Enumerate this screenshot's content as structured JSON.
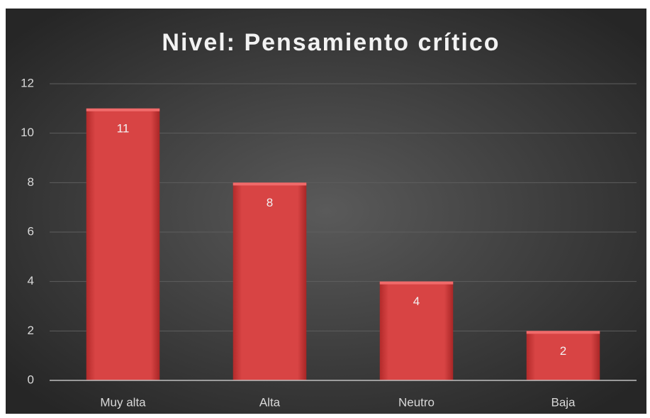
{
  "chart_data": {
    "type": "bar",
    "title": "Nivel: Pensamiento crítico",
    "categories": [
      "Muy alta",
      "Alta",
      "Neutro",
      "Baja"
    ],
    "values": [
      11,
      8,
      4,
      2
    ],
    "color": "#d63c3c",
    "ylim": [
      0,
      12
    ],
    "yticks": [
      0,
      2,
      4,
      6,
      8,
      10,
      12
    ],
    "grid": true
  }
}
